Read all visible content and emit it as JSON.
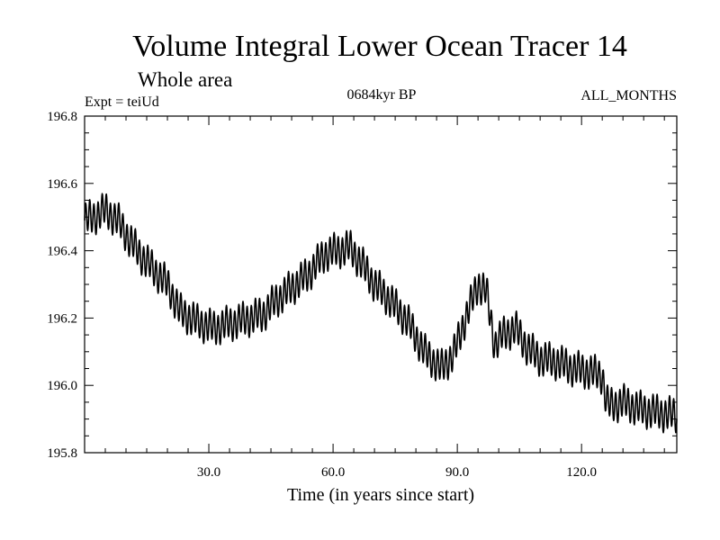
{
  "chart_data": {
    "type": "line",
    "title": "Volume Integral Lower Ocean Tracer 14",
    "subtitle": "Whole area",
    "expt_label": "Expt = teiUd",
    "period_label": "0684kyr BP",
    "months_label": "ALL_MONTHS",
    "xlabel": "Time (in years since start)",
    "ylabel": "",
    "xlim": [
      0,
      143
    ],
    "ylim": [
      195.8,
      196.8
    ],
    "x_ticks": [
      30,
      60,
      90,
      120
    ],
    "x_tick_labels": [
      "30.0",
      "60.0",
      "90.0",
      "120.0"
    ],
    "y_ticks": [
      195.8,
      196.0,
      196.2,
      196.4,
      196.6,
      196.8
    ],
    "y_tick_labels": [
      "195.8",
      "196.0",
      "196.2",
      "196.4",
      "196.6",
      "196.8"
    ],
    "grid": false,
    "oscillation_period_years": 1,
    "oscillation_amplitude": 0.045,
    "series": [
      {
        "name": "teiUd",
        "color": "#000000",
        "x": [
          0,
          2,
          5,
          8,
          11,
          14,
          17,
          20,
          23,
          27,
          31,
          34,
          37,
          40,
          43,
          46,
          50,
          54,
          58,
          61,
          64,
          67,
          70,
          74,
          78,
          82,
          86,
          89,
          92,
          95,
          97,
          99,
          101,
          104,
          107,
          110,
          114,
          118,
          122,
          125,
          126,
          127,
          130,
          134,
          138,
          143
        ],
        "values": [
          196.49,
          196.5,
          196.52,
          196.49,
          196.43,
          196.38,
          196.34,
          196.3,
          196.22,
          196.19,
          196.17,
          196.18,
          196.19,
          196.2,
          196.21,
          196.25,
          196.29,
          196.33,
          196.39,
          196.4,
          196.41,
          196.36,
          196.3,
          196.25,
          196.19,
          196.1,
          196.05,
          196.09,
          196.2,
          196.3,
          196.28,
          196.12,
          196.15,
          196.17,
          196.11,
          196.08,
          196.07,
          196.05,
          196.04,
          196.03,
          195.95,
          195.94,
          195.95,
          195.93,
          195.92,
          195.91
        ]
      }
    ]
  }
}
